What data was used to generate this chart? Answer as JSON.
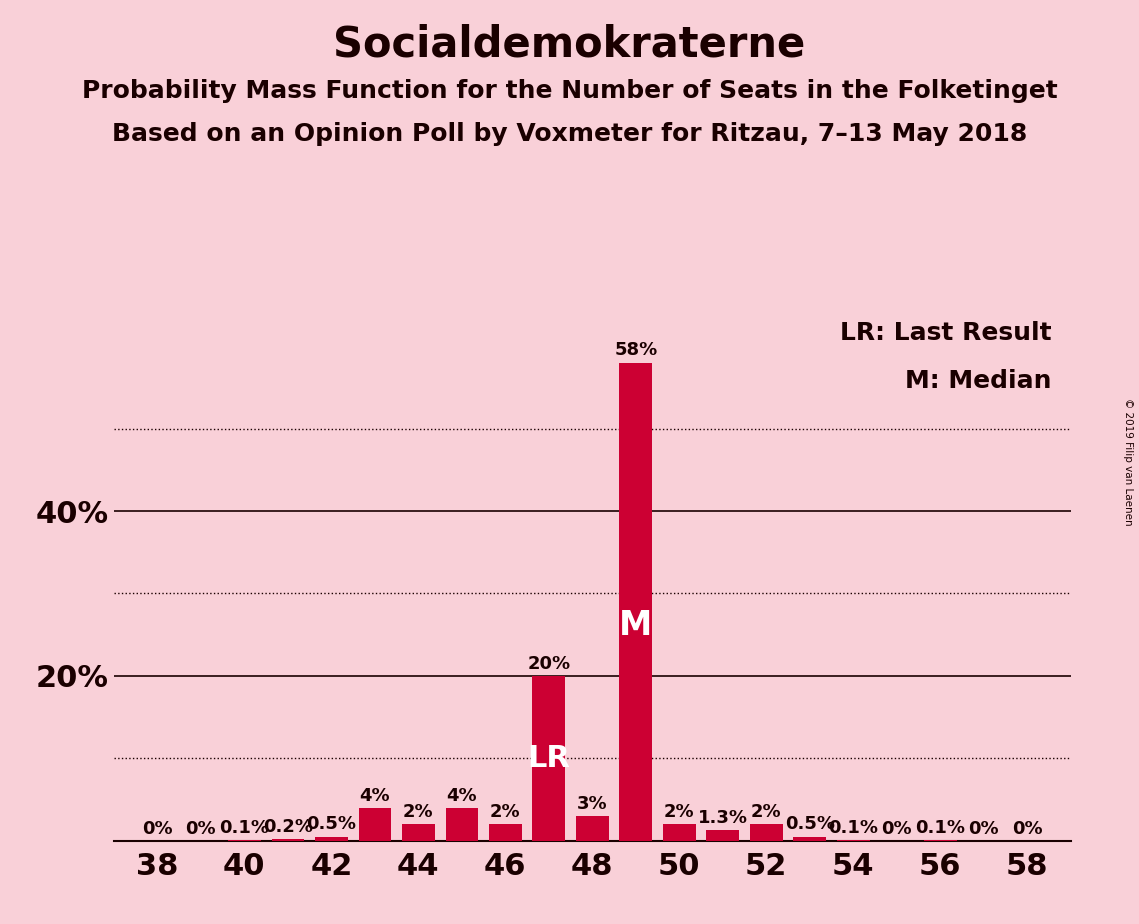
{
  "title": "Socialdemokraterne",
  "subtitle1": "Probability Mass Function for the Number of Seats in the Folketinget",
  "subtitle2": "Based on an Opinion Poll by Voxmeter for Ritzau, 7–13 May 2018",
  "copyright": "© 2019 Filip van Laenen",
  "seats": [
    38,
    39,
    40,
    41,
    42,
    43,
    44,
    45,
    46,
    47,
    48,
    49,
    50,
    51,
    52,
    53,
    54,
    55,
    56,
    57,
    58
  ],
  "probabilities": [
    0.0,
    0.0,
    0.001,
    0.002,
    0.005,
    0.04,
    0.02,
    0.04,
    0.02,
    0.2,
    0.03,
    0.58,
    0.02,
    0.013,
    0.02,
    0.005,
    0.001,
    0.0,
    0.001,
    0.0,
    0.0
  ],
  "labels": [
    "0%",
    "0%",
    "0.1%",
    "0.2%",
    "0.5%",
    "4%",
    "2%",
    "4%",
    "2%",
    "20%",
    "3%",
    "58%",
    "2%",
    "1.3%",
    "2%",
    "0.5%",
    "0.1%",
    "0%",
    "0.1%",
    "0%",
    "0%"
  ],
  "last_result_seat": 47,
  "median_seat": 49,
  "bar_color": "#cc0033",
  "background_color": "#f9d0d8",
  "text_color": "#1a0000",
  "ylim": [
    0,
    0.65
  ],
  "xlim": [
    37.0,
    59.0
  ],
  "title_fontsize": 30,
  "subtitle_fontsize": 18,
  "label_fontsize": 13,
  "legend_fontsize": 18,
  "ytick_fontsize": 22,
  "xtick_fontsize": 22,
  "lr_label_fontsize": 22,
  "m_label_fontsize": 24
}
